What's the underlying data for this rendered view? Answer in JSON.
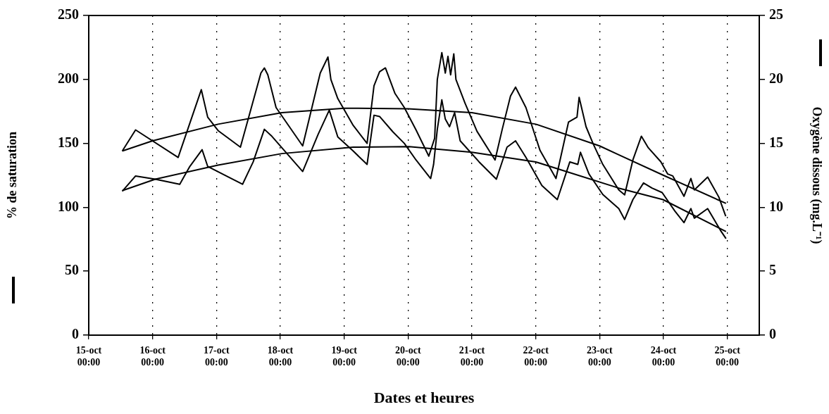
{
  "chart_data": {
    "type": "line",
    "xlabel": "Dates et heures",
    "ylabel": "% de saturation",
    "y2label": "Oxygène dissous (mg.L⁻¹)",
    "xlim": [
      "--10-15",
      "--10-25T12:00"
    ],
    "xticks": [
      {
        "value": "--10-15",
        "label": "15-oct 00:00"
      },
      {
        "value": "--10-16",
        "label": "16-oct 00:00"
      },
      {
        "value": "--10-17",
        "label": "17-oct 00:00"
      },
      {
        "value": "--10-18",
        "label": "18-oct 00:00"
      },
      {
        "value": "--10-19",
        "label": "19-oct 00:00"
      },
      {
        "value": "--10-20",
        "label": "20-oct 00:00"
      },
      {
        "value": "--10-21",
        "label": "21-oct 00:00"
      },
      {
        "value": "--10-22",
        "label": "22-oct 00:00"
      },
      {
        "value": "--10-23",
        "label": "23-oct 00:00"
      },
      {
        "value": "--10-24",
        "label": "24-oct 00:00"
      },
      {
        "value": "--10-25",
        "label": "25-oct 00:00"
      }
    ],
    "ylim": [
      0,
      250
    ],
    "yticks": [
      0,
      50,
      100,
      150,
      200,
      250
    ],
    "y2lim": [
      0,
      25
    ],
    "y2ticks": [
      0,
      5,
      10,
      15,
      20,
      25
    ],
    "grid": "x",
    "legend": false,
    "marker": "none",
    "line_style": "solid",
    "series": [
      {
        "color": "#000000",
        "x": [
          "--10-15T12:36",
          "--10-15T17:36",
          "--10-16T09:36",
          "--10-16T18:18",
          "--10-16T20:42",
          "--10-17T00:36",
          "--10-17T09:00",
          "--10-17T16:42",
          "--10-17T18:00",
          "--10-17T19:18",
          "--10-17T22:24",
          "--10-18T08:24",
          "--10-18T15:00",
          "--10-18T17:54",
          "--10-18T19:00",
          "--10-18T21:36",
          "--10-19T03:24",
          "--10-19T08:36",
          "--10-19T11:12",
          "--10-19T13:18",
          "--10-19T15:30",
          "--10-19T19:06",
          "--10-19T22:36",
          "--10-20T03:00",
          "--10-20T07:48",
          "--10-20T10:00",
          "--10-20T11:00",
          "--10-20T12:42",
          "--10-20T14:00",
          "--10-20T15:00",
          "--10-20T16:00",
          "--10-20T17:12",
          "--10-20T18:00",
          "--10-20T21:24",
          "--10-21T01:54",
          "--10-21T08:42",
          "--10-21T11:24",
          "--10-21T14:30",
          "--10-21T16:24",
          "--10-21T20:18",
          "--10-22T01:36",
          "--10-22T07:36",
          "--10-22T12:18",
          "--10-22T15:30",
          "--10-22T16:18",
          "--10-22T18:54",
          "--10-22T21:30",
          "--10-23T01:12",
          "--10-23T07:12",
          "--10-23T09:24",
          "--10-23T12:30",
          "--10-23T15:42",
          "--10-23T18:18",
          "--10-23T23:00",
          "--10-24T01:36",
          "--10-24T03:30",
          "--10-24T07:42",
          "--10-24T10:18",
          "--10-24T11:36",
          "--10-24T16:36",
          "--10-24T20:48",
          "--10-24T23:24"
        ],
        "values": [
          144,
          160.5,
          139,
          192,
          170.5,
          160,
          147,
          205,
          209,
          203.6,
          178,
          148,
          205,
          217.5,
          200,
          185,
          164,
          150,
          195,
          206,
          209,
          189,
          178,
          160.5,
          140,
          154,
          200,
          221,
          205,
          218,
          203.6,
          220,
          200,
          181.5,
          159.5,
          137,
          161,
          187,
          194,
          178,
          144.5,
          122.5,
          166.6,
          170.5,
          186,
          163,
          150,
          133.5,
          113.6,
          109.7,
          137,
          155.6,
          146.5,
          135.6,
          126,
          124.5,
          108.6,
          122.5,
          113.6,
          123.6,
          108,
          93
        ]
      },
      {
        "color": "#000000",
        "axis": "y2",
        "x": [
          "--10-15T12:36",
          "--10-15T17:36",
          "--10-16T01:00",
          "--10-16T10:12",
          "--10-16T14:00",
          "--10-16T18:36",
          "--10-16T20:42",
          "--10-17T09:48",
          "--10-17T13:48",
          "--10-17T18:00",
          "--10-17T20:36",
          "--10-18T08:24",
          "--10-18T14:12",
          "--10-18T18:24",
          "--10-18T21:36",
          "--10-19T03:24",
          "--10-19T08:36",
          "--10-19T11:12",
          "--10-19T13:18",
          "--10-19T18:18",
          "--10-19T22:36",
          "--10-20T03:00",
          "--10-20T08:30",
          "--10-20T09:36",
          "--10-20T11:00",
          "--10-20T12:42",
          "--10-20T14:00",
          "--10-20T15:36",
          "--10-20T17:30",
          "--10-20T19:36",
          "--10-21T02:42",
          "--10-21T09:12",
          "--10-21T13:12",
          "--10-21T16:24",
          "--10-21T20:18",
          "--10-22T02:18",
          "--10-22T08:06",
          "--10-22T12:48",
          "--10-22T15:48",
          "--10-22T16:48",
          "--10-22T20:00",
          "--10-23T01:12",
          "--10-23T07:12",
          "--10-23T09:24",
          "--10-23T12:30",
          "--10-23T16:30",
          "--10-23T19:42",
          "--10-23T23:30",
          "--10-24T04:18",
          "--10-24T07:42",
          "--10-24T10:18",
          "--10-24T11:36",
          "--10-24T16:36",
          "--10-24T21:24",
          "--10-24T23:30"
        ],
        "values": [
          11.25,
          12.45,
          12.2,
          11.8,
          13.2,
          14.5,
          13.2,
          11.8,
          13.55,
          16.1,
          15.6,
          12.8,
          15.7,
          17.6,
          15.5,
          14.4,
          13.35,
          17.2,
          17.1,
          15.9,
          15,
          13.7,
          12.25,
          13.35,
          16.1,
          18.4,
          16.9,
          16.3,
          17.4,
          15.2,
          13.55,
          12.2,
          14.7,
          15.2,
          13.9,
          11.7,
          10.6,
          13.55,
          13.35,
          14.3,
          12.6,
          11,
          9.9,
          9.05,
          10.6,
          11.9,
          11.5,
          11.15,
          9.7,
          8.8,
          9.9,
          9.15,
          9.9,
          8.2,
          7.55
        ]
      },
      {
        "color": "#000000",
        "x": [
          "--10-15T12:36",
          "--10-16T00:00",
          "--10-17T00:36",
          "--10-18T00:36",
          "--10-19T00:00",
          "--10-20T00:00",
          "--10-21T00:00",
          "--10-22T00:00",
          "--10-23T00:00",
          "--10-23T07:12",
          "--10-24T00:00",
          "--10-24T23:30"
        ],
        "values": [
          144,
          152,
          165,
          174,
          177.5,
          177,
          174,
          165,
          148,
          141,
          125,
          103
        ]
      },
      {
        "color": "#000000",
        "axis": "y2",
        "x": [
          "--10-15T12:36",
          "--10-16T01:00",
          "--10-17T00:36",
          "--10-18T00:36",
          "--10-19T03:24",
          "--10-20T00:24",
          "--10-21T00:00",
          "--10-22T00:00",
          "--10-23T07:12",
          "--10-23T23:48",
          "--10-24T23:30"
        ],
        "values": [
          11.3,
          12.2,
          13.3,
          14.2,
          14.7,
          14.75,
          14.3,
          13.55,
          11.5,
          10.6,
          8.1
        ]
      }
    ]
  }
}
